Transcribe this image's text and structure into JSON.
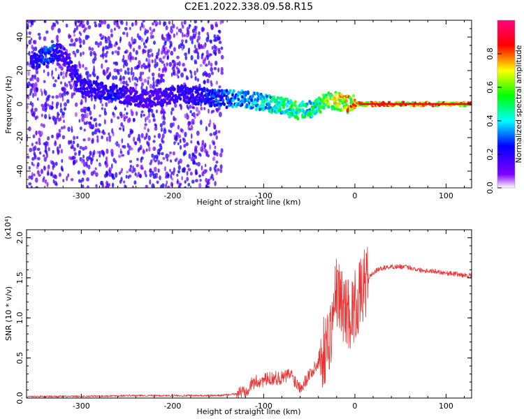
{
  "title": "C2E1.2022.338.09.58.R15",
  "chart_data": [
    {
      "type": "heatmap",
      "xlabel": "Height of straight line (km)",
      "ylabel": "Frequency (Hz)",
      "xlim": [
        -360,
        128
      ],
      "ylim": [
        -50,
        50
      ],
      "x_ticks": [
        -300,
        -200,
        -100,
        0,
        100
      ],
      "x_tick_labels": [
        "-300",
        "-200",
        "-100",
        "0",
        "100"
      ],
      "y_ticks": [
        -40,
        -20,
        0,
        20,
        40
      ],
      "y_tick_labels": [
        "-40",
        "-20",
        "0",
        "20",
        "40"
      ],
      "colorbar": {
        "label": "Normalized spectral amplitude",
        "range": [
          0,
          1
        ],
        "ticks": [
          0.0,
          0.2,
          0.4,
          0.6,
          0.8
        ],
        "tick_labels": [
          "0.0",
          "0.2",
          "0.4",
          "0.6",
          "0.8"
        ],
        "colors": [
          "#ffffff",
          "#8000ff",
          "#0000ff",
          "#00ffff",
          "#00ff00",
          "#ffff00",
          "#ff0000",
          "#ff0080"
        ]
      },
      "ridge": {
        "x": [
          -350,
          -345,
          -340,
          -335,
          -330,
          -320,
          -300,
          -280,
          -265,
          -250,
          -230,
          -210,
          -190,
          -175,
          -160,
          -145,
          -130,
          -120,
          -110,
          -100,
          -90,
          -80,
          -70,
          -60,
          -50,
          -45,
          -40,
          -35,
          -30,
          -25,
          -20,
          -15,
          -10,
          -5,
          0,
          10,
          50,
          100,
          128
        ],
        "y": [
          25,
          27,
          29,
          30,
          31,
          30,
          10,
          8,
          7,
          5,
          3,
          4,
          6,
          5,
          4,
          3,
          3,
          3,
          2,
          1,
          0,
          -1,
          -3,
          -4,
          -3,
          -3,
          -1,
          1,
          2,
          2,
          2,
          1,
          0,
          0,
          0,
          0,
          0,
          0,
          0
        ],
        "amplitude": [
          0.25,
          0.3,
          0.35,
          0.35,
          0.3,
          0.2,
          0.25,
          0.25,
          0.3,
          0.2,
          0.2,
          0.2,
          0.25,
          0.25,
          0.3,
          0.35,
          0.4,
          0.45,
          0.45,
          0.5,
          0.55,
          0.55,
          0.6,
          0.6,
          0.55,
          0.55,
          0.6,
          0.7,
          0.75,
          0.8,
          0.8,
          0.8,
          0.85,
          0.9,
          0.9,
          0.9,
          0.9,
          0.9,
          0.9
        ]
      },
      "noise_region": {
        "xlim": [
          -360,
          -145
        ],
        "ylim": [
          -50,
          50
        ],
        "amplitude_range": [
          0.05,
          0.25
        ]
      },
      "grid": false
    },
    {
      "type": "line",
      "xlabel": "Height of straight line (km)",
      "ylabel": "SNR (10 * v/v)",
      "y_multiplier": "(x10⁴)",
      "xlim": [
        -360,
        128
      ],
      "ylim": [
        0,
        2.1
      ],
      "x_ticks": [
        -300,
        -200,
        -100,
        0,
        100
      ],
      "x_tick_labels": [
        "-300",
        "-200",
        "-100",
        "0",
        "100"
      ],
      "y_ticks": [
        0.0,
        0.5,
        1.0,
        1.5,
        2.0
      ],
      "y_tick_labels": [
        "0.0",
        "0.5",
        "1.0",
        "1.5",
        "2.0"
      ],
      "color": "#ee3333",
      "grid": false,
      "series": [
        {
          "x": [
            -360,
            -300,
            -250,
            -200,
            -150,
            -130,
            -120,
            -110,
            -100,
            -90,
            -80,
            -70,
            -65,
            -60,
            -55,
            -50,
            -45,
            -40,
            -35,
            -30,
            -25,
            -22,
            -20,
            -15,
            -10,
            -5,
            0,
            5,
            10,
            15,
            20,
            25,
            30,
            40,
            50,
            60,
            70,
            80,
            90,
            100,
            110,
            120,
            128
          ],
          "y": [
            0.02,
            0.02,
            0.03,
            0.03,
            0.03,
            0.05,
            0.1,
            0.2,
            0.22,
            0.25,
            0.25,
            0.3,
            0.2,
            0.15,
            0.2,
            0.3,
            0.35,
            0.45,
            0.55,
            0.7,
            0.9,
            1.2,
            1.35,
            1.2,
            1.1,
            1.05,
            1.15,
            1.25,
            1.4,
            1.5,
            1.56,
            1.6,
            1.62,
            1.64,
            1.64,
            1.63,
            1.6,
            1.59,
            1.58,
            1.56,
            1.55,
            1.53,
            1.53
          ]
        }
      ]
    }
  ]
}
